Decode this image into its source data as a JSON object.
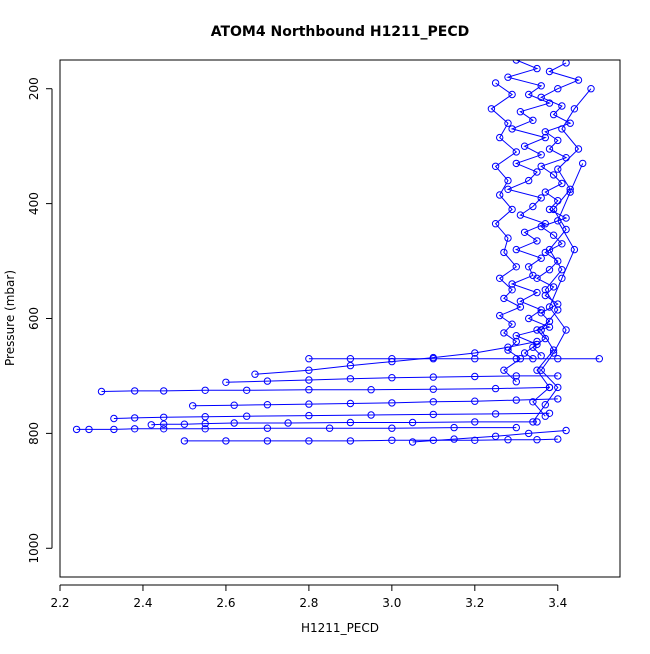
{
  "chart_data": {
    "type": "scatter",
    "title": "ATOM4 Northbound H1211_PECD",
    "xlabel": "H1211_PECD",
    "ylabel": "Pressure (mbar)",
    "xlim": [
      2.2,
      3.55
    ],
    "ylim": [
      1050,
      150
    ],
    "y_reversed": true,
    "x_ticks": [
      "2.2",
      "2.4",
      "2.6",
      "2.8",
      "3.0",
      "3.2",
      "3.4"
    ],
    "y_ticks": [
      "200",
      "400",
      "600",
      "800",
      "1000"
    ],
    "grid": false,
    "legend": "none",
    "series_color": "#0000ff",
    "marker": "open-circle",
    "connected": true,
    "series": [
      {
        "x": [
          3.3,
          3.35,
          3.28,
          3.36,
          3.33,
          3.38,
          3.31,
          3.34,
          3.29,
          3.37,
          3.32,
          3.36,
          3.3,
          3.35,
          3.33,
          3.28,
          3.36,
          3.34,
          3.31,
          3.37,
          3.32,
          3.35,
          3.3,
          3.36,
          3.33,
          3.34,
          3.29,
          3.35,
          3.31,
          3.36,
          3.33,
          3.38,
          3.3,
          3.35,
          3.32,
          3.34
        ],
        "y": [
          150,
          165,
          180,
          195,
          210,
          225,
          240,
          255,
          270,
          285,
          300,
          315,
          330,
          345,
          360,
          375,
          390,
          405,
          420,
          435,
          450,
          465,
          480,
          495,
          510,
          525,
          540,
          555,
          570,
          585,
          600,
          615,
          630,
          645,
          660,
          670
        ]
      },
      {
        "x": [
          3.42,
          3.38,
          3.45,
          3.4,
          3.36,
          3.41,
          3.39,
          3.43,
          3.37,
          3.4,
          3.38,
          3.42,
          3.36,
          3.39,
          3.41,
          3.37,
          3.4,
          3.38,
          3.42,
          3.36,
          3.39,
          3.41,
          3.37,
          3.4,
          3.38,
          3.35,
          3.39,
          3.37,
          3.4,
          3.36,
          3.38,
          3.35,
          3.37,
          3.34,
          3.36
        ],
        "y": [
          155,
          170,
          185,
          200,
          215,
          230,
          245,
          260,
          275,
          290,
          305,
          320,
          335,
          350,
          365,
          380,
          395,
          410,
          425,
          440,
          455,
          470,
          485,
          500,
          515,
          530,
          545,
          560,
          575,
          590,
          605,
          620,
          635,
          650,
          665
        ]
      },
      {
        "x": [
          3.25,
          3.29,
          3.24,
          3.28,
          3.26,
          3.3,
          3.25,
          3.28,
          3.26,
          3.29,
          3.25,
          3.28,
          3.27,
          3.3,
          3.26,
          3.29,
          3.27,
          3.31,
          3.26,
          3.29,
          3.27,
          3.3,
          3.28,
          3.31,
          3.27,
          3.3
        ],
        "y": [
          190,
          210,
          235,
          260,
          285,
          310,
          335,
          360,
          385,
          410,
          435,
          460,
          485,
          510,
          530,
          550,
          565,
          580,
          595,
          610,
          625,
          640,
          655,
          670,
          690,
          710
        ]
      },
      {
        "x": [
          3.48,
          3.44,
          3.41,
          3.45,
          3.4,
          3.43,
          3.39,
          3.42,
          3.38,
          3.41,
          3.37,
          3.4,
          3.36,
          3.39,
          3.35,
          3.38,
          3.34,
          3.37
        ],
        "y": [
          200,
          235,
          270,
          305,
          340,
          375,
          410,
          445,
          480,
          515,
          550,
          585,
          620,
          655,
          690,
          720,
          745,
          770
        ]
      },
      {
        "x": [
          3.46,
          3.43,
          3.4,
          3.44,
          3.41,
          3.38,
          3.42,
          3.39,
          3.36,
          3.4,
          3.37,
          3.34
        ],
        "y": [
          330,
          380,
          430,
          480,
          530,
          580,
          620,
          660,
          690,
          720,
          750,
          780
        ]
      },
      {
        "x": [
          3.5,
          3.4,
          3.3,
          3.2,
          3.1,
          3.0,
          2.9,
          2.8
        ],
        "y": [
          670,
          670,
          670,
          670,
          670,
          670,
          670,
          670
        ]
      },
      {
        "x": [
          3.35,
          3.28,
          3.2,
          3.1,
          3.0,
          2.9,
          2.8,
          2.67
        ],
        "y": [
          640,
          650,
          660,
          668,
          675,
          682,
          690,
          697
        ]
      },
      {
        "x": [
          3.4,
          3.3,
          3.2,
          3.1,
          3.0,
          2.9,
          2.8,
          2.7,
          2.6
        ],
        "y": [
          700,
          700,
          701,
          702,
          703,
          705,
          707,
          709,
          711
        ]
      },
      {
        "x": [
          3.38,
          3.25,
          3.1,
          2.95,
          2.8,
          2.65,
          2.55,
          2.45,
          2.38,
          2.3
        ],
        "y": [
          720,
          722,
          723,
          724,
          724,
          725,
          725,
          726,
          726,
          727
        ]
      },
      {
        "x": [
          3.4,
          3.3,
          3.2,
          3.1,
          3.0,
          2.9,
          2.8,
          2.7,
          2.62,
          2.52
        ],
        "y": [
          740,
          742,
          744,
          745,
          747,
          748,
          749,
          750,
          751,
          752
        ]
      },
      {
        "x": [
          3.38,
          3.25,
          3.1,
          2.95,
          2.8,
          2.65,
          2.55,
          2.45,
          2.38,
          2.33
        ],
        "y": [
          765,
          766,
          767,
          768,
          769,
          770,
          771,
          772,
          773,
          774
        ]
      },
      {
        "x": [
          3.35,
          3.2,
          3.05,
          2.9,
          2.75,
          2.62,
          2.55,
          2.5,
          2.45,
          2.42
        ],
        "y": [
          780,
          780,
          781,
          781,
          782,
          782,
          783,
          784,
          784,
          785
        ]
      },
      {
        "x": [
          3.3,
          3.15,
          3.0,
          2.85,
          2.7,
          2.55,
          2.45,
          2.38,
          2.33,
          2.27,
          2.24
        ],
        "y": [
          790,
          790,
          791,
          791,
          791,
          792,
          792,
          792,
          793,
          793,
          793
        ]
      },
      {
        "x": [
          3.4,
          3.35,
          3.28,
          3.2,
          3.1,
          3.0,
          2.9,
          2.8,
          2.7,
          2.6,
          2.5
        ],
        "y": [
          810,
          811,
          811,
          812,
          812,
          812,
          813,
          813,
          813,
          813,
          813
        ]
      },
      {
        "x": [
          3.42,
          3.33,
          3.25,
          3.15,
          3.05
        ],
        "y": [
          795,
          800,
          805,
          810,
          815
        ]
      }
    ]
  }
}
